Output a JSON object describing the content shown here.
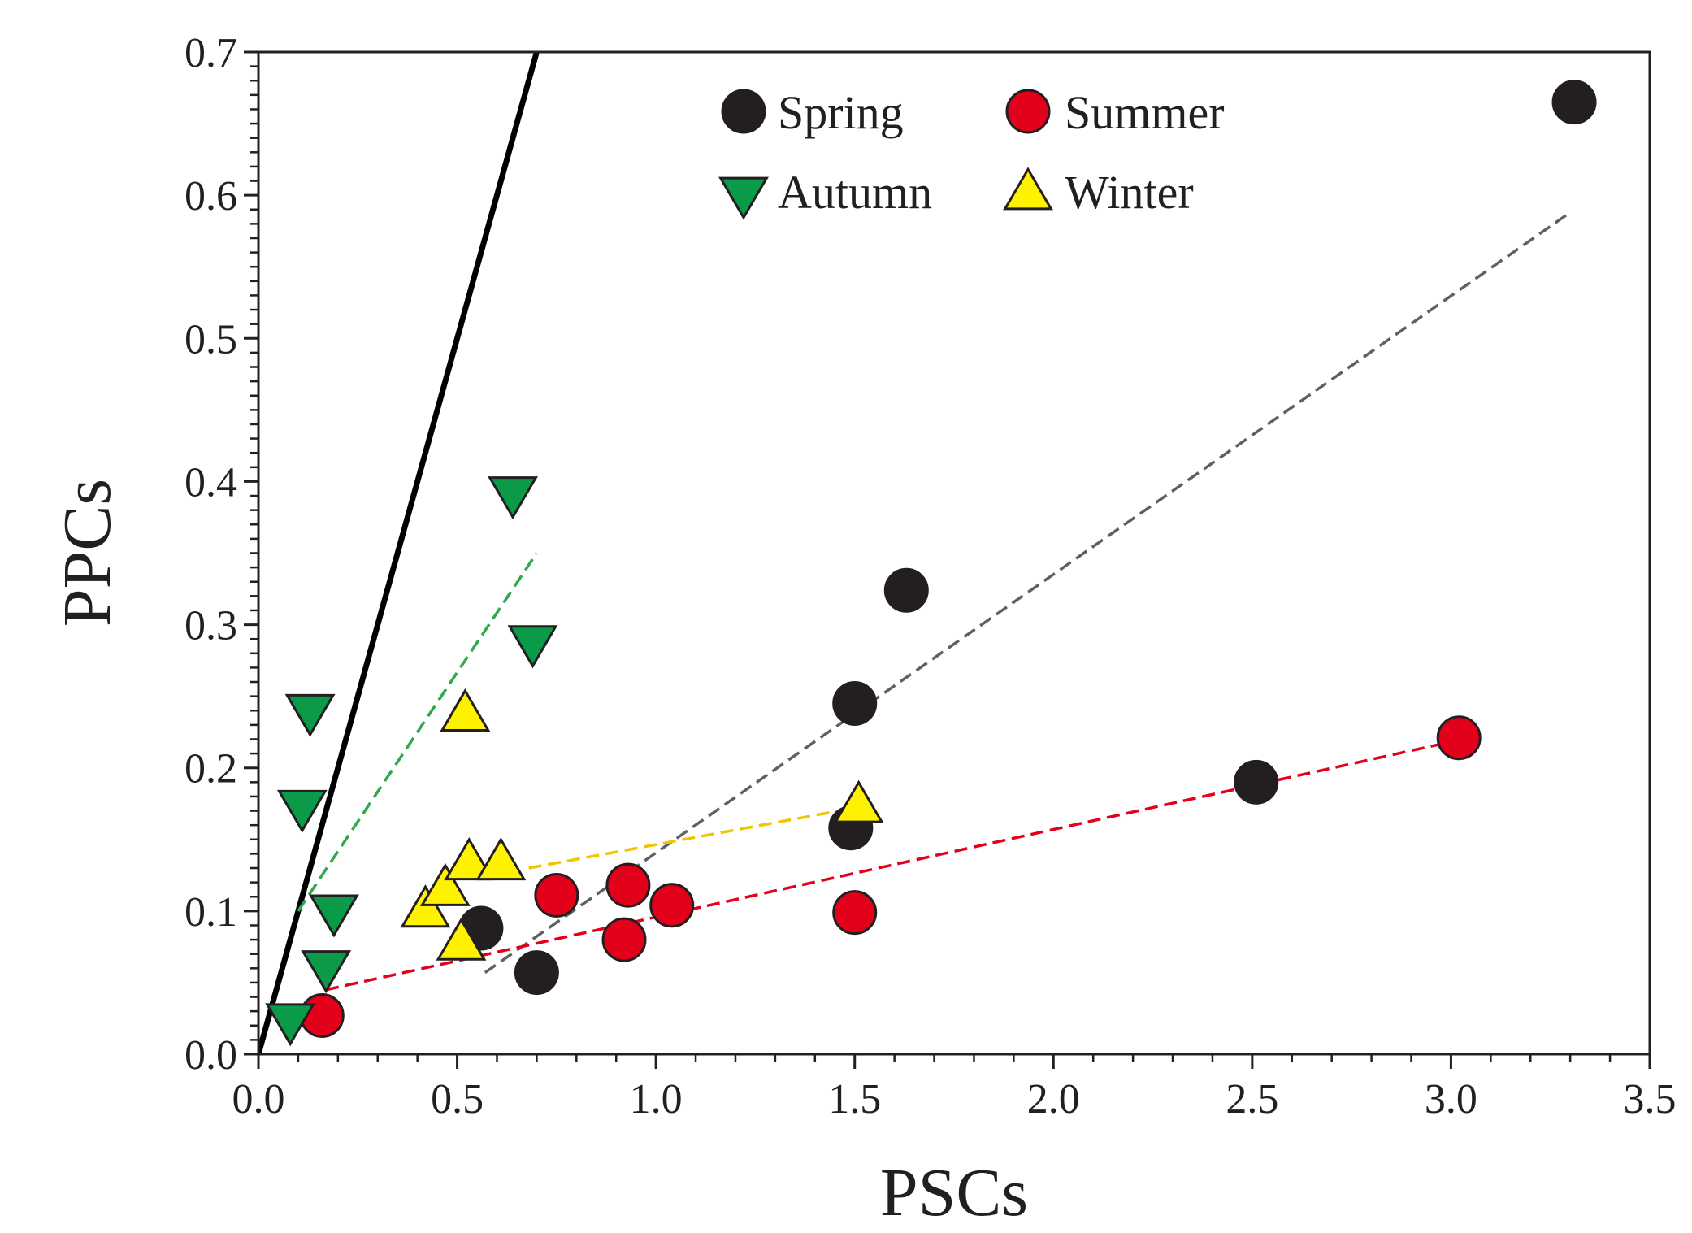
{
  "chart_data": {
    "type": "scatter",
    "title": "",
    "xlabel": "PSCs",
    "ylabel": "PPCs",
    "xlim": [
      0,
      3.5
    ],
    "ylim": [
      0,
      0.7
    ],
    "xticks": [
      "0.0",
      "0.5",
      "1.0",
      "1.5",
      "2.0",
      "2.5",
      "3.0",
      "3.5"
    ],
    "yticks": [
      "0.0",
      "0.1",
      "0.2",
      "0.3",
      "0.4",
      "0.5",
      "0.6",
      "0.7"
    ],
    "legend_position": "top-right",
    "series": [
      {
        "name": "Spring",
        "marker": "circle",
        "color": "#231f20",
        "points": [
          [
            0.56,
            0.088
          ],
          [
            0.7,
            0.057
          ],
          [
            1.49,
            0.158
          ],
          [
            1.5,
            0.245
          ],
          [
            1.63,
            0.324
          ],
          [
            2.51,
            0.19
          ],
          [
            3.31,
            0.665
          ]
        ],
        "fit_line": {
          "x": [
            0.57,
            3.3
          ],
          "y": [
            0.057,
            0.588
          ],
          "color": "#606060"
        }
      },
      {
        "name": "Summer",
        "marker": "circle",
        "color": "#e3001b",
        "points": [
          [
            0.16,
            0.027
          ],
          [
            0.75,
            0.111
          ],
          [
            0.92,
            0.08
          ],
          [
            0.93,
            0.118
          ],
          [
            1.04,
            0.104
          ],
          [
            1.5,
            0.099
          ],
          [
            3.02,
            0.221
          ]
        ],
        "fit_line": {
          "x": [
            0.17,
            3.03
          ],
          "y": [
            0.045,
            0.22
          ],
          "color": "#e3001b"
        }
      },
      {
        "name": "Autumn",
        "marker": "triangle-down",
        "color": "#0a9a48",
        "points": [
          [
            0.08,
            0.024
          ],
          [
            0.11,
            0.173
          ],
          [
            0.13,
            0.24
          ],
          [
            0.17,
            0.061
          ],
          [
            0.19,
            0.1
          ],
          [
            0.64,
            0.392
          ],
          [
            0.69,
            0.288
          ]
        ],
        "fit_line": {
          "x": [
            0.1,
            0.7
          ],
          "y": [
            0.1,
            0.35
          ],
          "color": "#2fa84f"
        }
      },
      {
        "name": "Winter",
        "marker": "triangle-up",
        "color": "#fff200",
        "points": [
          [
            0.42,
            0.1
          ],
          [
            0.47,
            0.115
          ],
          [
            0.51,
            0.077
          ],
          [
            0.52,
            0.237
          ],
          [
            0.53,
            0.133
          ],
          [
            0.61,
            0.133
          ],
          [
            1.51,
            0.173
          ]
        ],
        "fit_line": {
          "x": [
            0.68,
            1.5
          ],
          "y": [
            0.13,
            0.172
          ],
          "color": "#f2c500"
        }
      }
    ],
    "reference_line": {
      "name": "1:1 reference",
      "x": [
        0,
        0.7
      ],
      "y": [
        0,
        0.7
      ],
      "color": "#000000"
    }
  }
}
